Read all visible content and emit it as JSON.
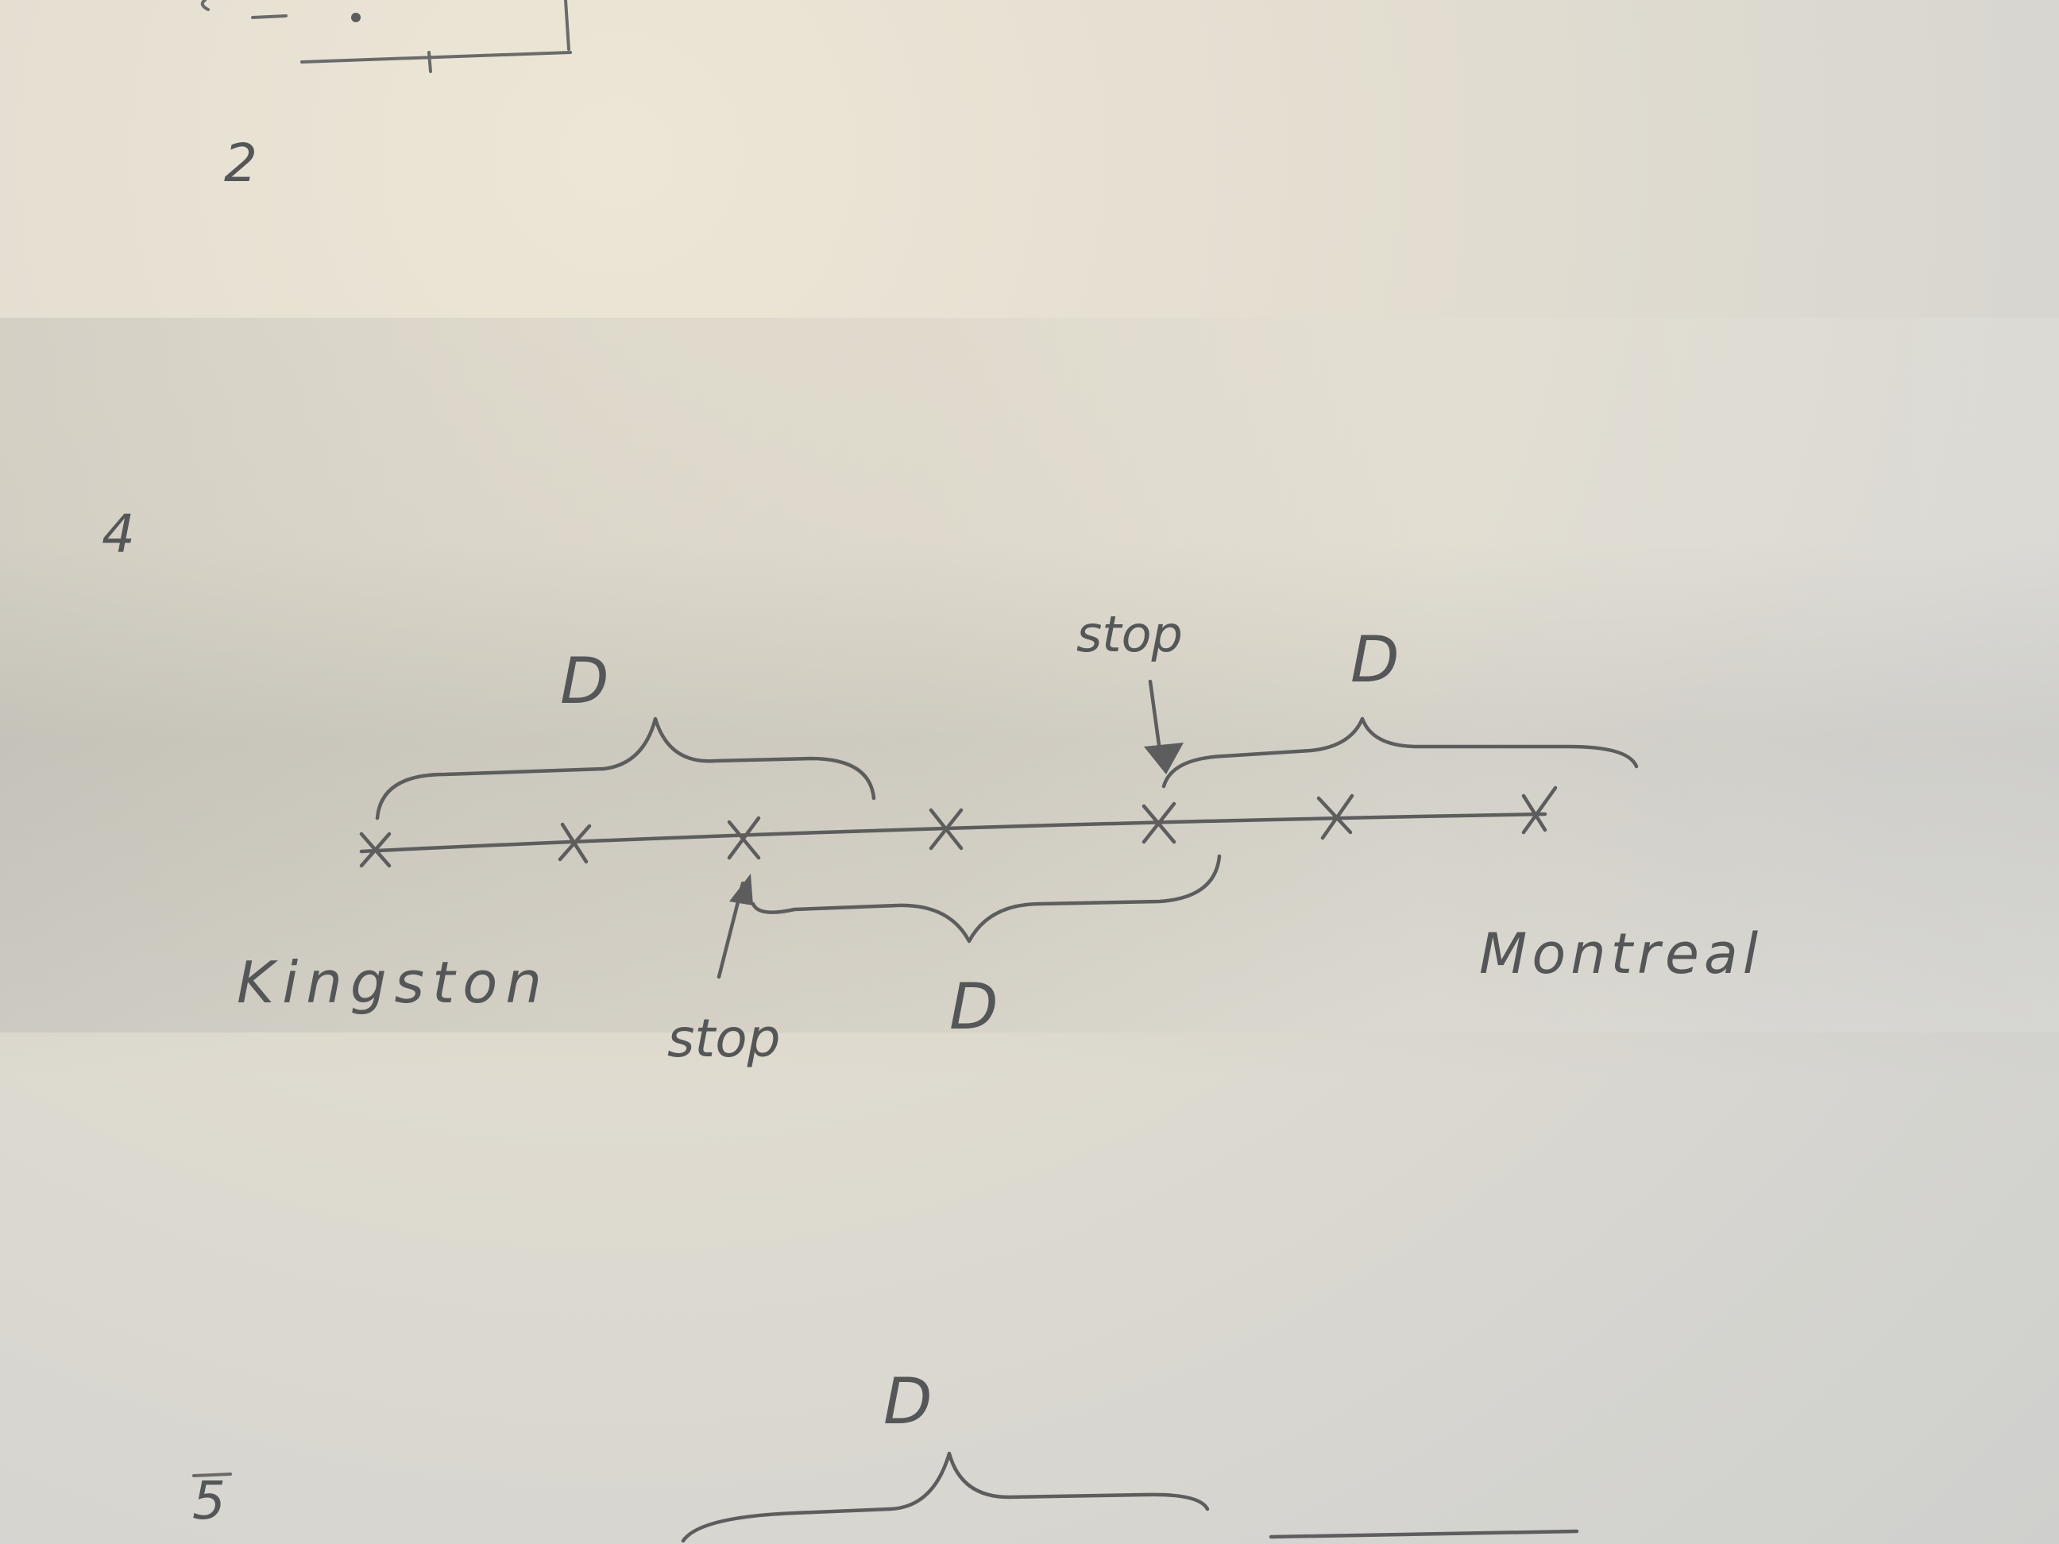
{
  "section_numbers": {
    "top": "2",
    "middle": "4",
    "bottom": "5"
  },
  "diagram": {
    "labels": {
      "start_city": "Kingston",
      "end_city": "Montreal",
      "stop_lower": "stop",
      "stop_upper": "stop",
      "distance_left": "D",
      "distance_middle": "D",
      "distance_right": "D",
      "distance_bottom": "D"
    }
  },
  "colors": {
    "paper": "#e2ddd0",
    "pencil": "#5d5d5e"
  }
}
